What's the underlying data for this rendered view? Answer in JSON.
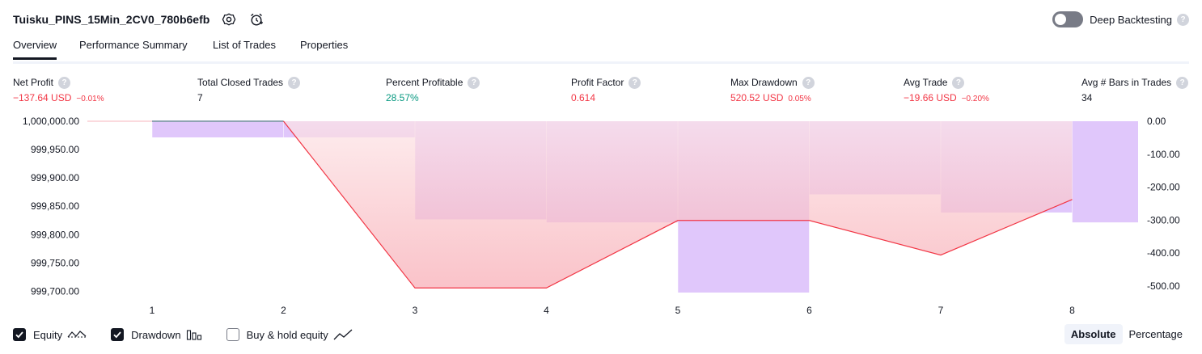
{
  "header": {
    "title": "Tuisku_PINS_15Min_2CV0_780b6efb",
    "deep_backtesting_label": "Deep Backtesting",
    "help_glyph": "?"
  },
  "tabs": [
    {
      "label": "Overview",
      "active": true
    },
    {
      "label": "Performance Summary",
      "active": false
    },
    {
      "label": "List of Trades",
      "active": false
    },
    {
      "label": "Properties",
      "active": false
    }
  ],
  "metrics": {
    "net_profit": {
      "label": "Net Profit",
      "value": "−137.64 USD",
      "pct": "−0.01%"
    },
    "total_closed_trades": {
      "label": "Total Closed Trades",
      "value": "7"
    },
    "percent_profitable": {
      "label": "Percent Profitable",
      "value": "28.57%"
    },
    "profit_factor": {
      "label": "Profit Factor",
      "value": "0.614"
    },
    "max_drawdown": {
      "label": "Max Drawdown",
      "value": "520.52 USD",
      "pct": "0.05%"
    },
    "avg_trade": {
      "label": "Avg Trade",
      "value": "−19.66 USD",
      "pct": "−0.20%"
    },
    "avg_bars": {
      "label": "Avg # Bars in Trades",
      "value": "34"
    }
  },
  "chart_data": {
    "type": "area",
    "x_categories": [
      "1",
      "2",
      "3",
      "4",
      "5",
      "6",
      "7",
      "8"
    ],
    "left_axis": {
      "ticks": [
        "1,000,000.00",
        "999,950.00",
        "999,900.00",
        "999,850.00",
        "999,800.00",
        "999,750.00",
        "999,700.00"
      ],
      "range": [
        999695,
        1000000
      ]
    },
    "right_axis": {
      "ticks": [
        "0.00",
        "-100.00",
        "-200.00",
        "-300.00",
        "-400.00",
        "-500.00"
      ],
      "range": [
        -525,
        0
      ]
    },
    "series": [
      {
        "name": "Equity",
        "x": [
          1,
          2,
          3,
          4,
          5,
          6,
          7,
          8
        ],
        "values": [
          1000000,
          1000000,
          999706,
          999706,
          999825,
          999825,
          999764,
          999862
        ]
      },
      {
        "name": "Drawdown",
        "x": [
          1.5,
          2.5,
          3.5,
          4.5,
          5.5,
          6.5,
          7.5,
          8.5
        ],
        "values": [
          -49,
          -49,
          -298,
          -307,
          -520,
          -222,
          -277,
          -307
        ]
      }
    ],
    "colors": {
      "equity_line": "#f23645",
      "equity_fill": "#f7a9b2",
      "drawdown_bar": "#dec4fb",
      "flat_equity": "#8fa2b3"
    }
  },
  "legend": {
    "equity": {
      "label": "Equity",
      "checked": true
    },
    "drawdown": {
      "label": "Drawdown",
      "checked": true
    },
    "buy_hold": {
      "label": "Buy & hold equity",
      "checked": false
    }
  },
  "modes": {
    "absolute": "Absolute",
    "percentage": "Percentage",
    "active": "absolute"
  },
  "icons": [
    "settings-icon",
    "alarm-clock-icon",
    "help-icon",
    "checkmark-icon",
    "equity-line-icon",
    "drawdown-bars-icon",
    "buy-hold-line-icon"
  ]
}
